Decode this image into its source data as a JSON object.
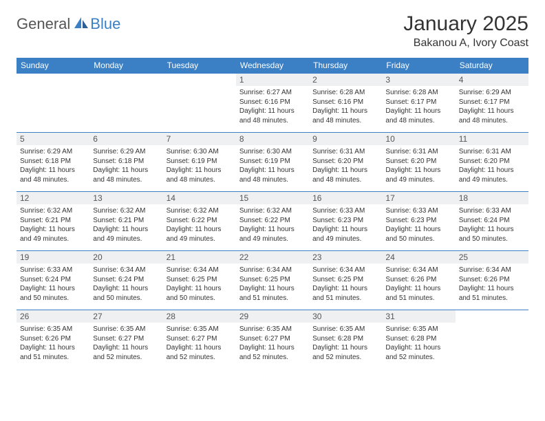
{
  "logo": {
    "text1": "General",
    "text2": "Blue"
  },
  "title": "January 2025",
  "location": "Bakanou A, Ivory Coast",
  "colors": {
    "header_bg": "#3b7fc4",
    "header_text": "#ffffff",
    "daynum_bg": "#eef0f2",
    "border": "#3b7fc4",
    "text": "#333333",
    "logo_grey": "#555555",
    "logo_blue": "#3b7fc4"
  },
  "dayHeaders": [
    "Sunday",
    "Monday",
    "Tuesday",
    "Wednesday",
    "Thursday",
    "Friday",
    "Saturday"
  ],
  "weeks": [
    [
      {
        "empty": true
      },
      {
        "empty": true
      },
      {
        "empty": true
      },
      {
        "day": "1",
        "sunrise": "6:27 AM",
        "sunset": "6:16 PM",
        "daylight": "11 hours and 48 minutes."
      },
      {
        "day": "2",
        "sunrise": "6:28 AM",
        "sunset": "6:16 PM",
        "daylight": "11 hours and 48 minutes."
      },
      {
        "day": "3",
        "sunrise": "6:28 AM",
        "sunset": "6:17 PM",
        "daylight": "11 hours and 48 minutes."
      },
      {
        "day": "4",
        "sunrise": "6:29 AM",
        "sunset": "6:17 PM",
        "daylight": "11 hours and 48 minutes."
      }
    ],
    [
      {
        "day": "5",
        "sunrise": "6:29 AM",
        "sunset": "6:18 PM",
        "daylight": "11 hours and 48 minutes."
      },
      {
        "day": "6",
        "sunrise": "6:29 AM",
        "sunset": "6:18 PM",
        "daylight": "11 hours and 48 minutes."
      },
      {
        "day": "7",
        "sunrise": "6:30 AM",
        "sunset": "6:19 PM",
        "daylight": "11 hours and 48 minutes."
      },
      {
        "day": "8",
        "sunrise": "6:30 AM",
        "sunset": "6:19 PM",
        "daylight": "11 hours and 48 minutes."
      },
      {
        "day": "9",
        "sunrise": "6:31 AM",
        "sunset": "6:20 PM",
        "daylight": "11 hours and 48 minutes."
      },
      {
        "day": "10",
        "sunrise": "6:31 AM",
        "sunset": "6:20 PM",
        "daylight": "11 hours and 49 minutes."
      },
      {
        "day": "11",
        "sunrise": "6:31 AM",
        "sunset": "6:20 PM",
        "daylight": "11 hours and 49 minutes."
      }
    ],
    [
      {
        "day": "12",
        "sunrise": "6:32 AM",
        "sunset": "6:21 PM",
        "daylight": "11 hours and 49 minutes."
      },
      {
        "day": "13",
        "sunrise": "6:32 AM",
        "sunset": "6:21 PM",
        "daylight": "11 hours and 49 minutes."
      },
      {
        "day": "14",
        "sunrise": "6:32 AM",
        "sunset": "6:22 PM",
        "daylight": "11 hours and 49 minutes."
      },
      {
        "day": "15",
        "sunrise": "6:32 AM",
        "sunset": "6:22 PM",
        "daylight": "11 hours and 49 minutes."
      },
      {
        "day": "16",
        "sunrise": "6:33 AM",
        "sunset": "6:23 PM",
        "daylight": "11 hours and 49 minutes."
      },
      {
        "day": "17",
        "sunrise": "6:33 AM",
        "sunset": "6:23 PM",
        "daylight": "11 hours and 50 minutes."
      },
      {
        "day": "18",
        "sunrise": "6:33 AM",
        "sunset": "6:24 PM",
        "daylight": "11 hours and 50 minutes."
      }
    ],
    [
      {
        "day": "19",
        "sunrise": "6:33 AM",
        "sunset": "6:24 PM",
        "daylight": "11 hours and 50 minutes."
      },
      {
        "day": "20",
        "sunrise": "6:34 AM",
        "sunset": "6:24 PM",
        "daylight": "11 hours and 50 minutes."
      },
      {
        "day": "21",
        "sunrise": "6:34 AM",
        "sunset": "6:25 PM",
        "daylight": "11 hours and 50 minutes."
      },
      {
        "day": "22",
        "sunrise": "6:34 AM",
        "sunset": "6:25 PM",
        "daylight": "11 hours and 51 minutes."
      },
      {
        "day": "23",
        "sunrise": "6:34 AM",
        "sunset": "6:25 PM",
        "daylight": "11 hours and 51 minutes."
      },
      {
        "day": "24",
        "sunrise": "6:34 AM",
        "sunset": "6:26 PM",
        "daylight": "11 hours and 51 minutes."
      },
      {
        "day": "25",
        "sunrise": "6:34 AM",
        "sunset": "6:26 PM",
        "daylight": "11 hours and 51 minutes."
      }
    ],
    [
      {
        "day": "26",
        "sunrise": "6:35 AM",
        "sunset": "6:26 PM",
        "daylight": "11 hours and 51 minutes."
      },
      {
        "day": "27",
        "sunrise": "6:35 AM",
        "sunset": "6:27 PM",
        "daylight": "11 hours and 52 minutes."
      },
      {
        "day": "28",
        "sunrise": "6:35 AM",
        "sunset": "6:27 PM",
        "daylight": "11 hours and 52 minutes."
      },
      {
        "day": "29",
        "sunrise": "6:35 AM",
        "sunset": "6:27 PM",
        "daylight": "11 hours and 52 minutes."
      },
      {
        "day": "30",
        "sunrise": "6:35 AM",
        "sunset": "6:28 PM",
        "daylight": "11 hours and 52 minutes."
      },
      {
        "day": "31",
        "sunrise": "6:35 AM",
        "sunset": "6:28 PM",
        "daylight": "11 hours and 52 minutes."
      },
      {
        "empty": true
      }
    ]
  ],
  "labels": {
    "sunrise": "Sunrise: ",
    "sunset": "Sunset: ",
    "daylight": "Daylight: "
  }
}
